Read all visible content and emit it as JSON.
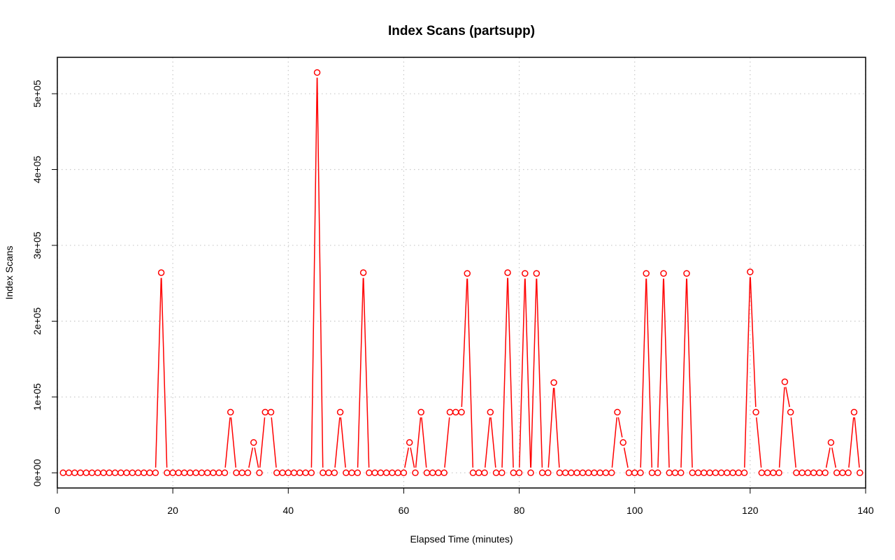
{
  "chart_data": {
    "type": "line",
    "title": "Index Scans (partsupp)",
    "xlabel": "Elapsed Time (minutes)",
    "ylabel": "Index Scans",
    "xlim": [
      0,
      140
    ],
    "ylim": [
      -20000,
      548000
    ],
    "x_ticks": [
      0,
      20,
      40,
      60,
      80,
      100,
      120,
      140
    ],
    "x_tick_labels": [
      "0",
      "20",
      "40",
      "60",
      "80",
      "100",
      "120",
      "140"
    ],
    "y_ticks": [
      0,
      100000,
      200000,
      300000,
      400000,
      500000
    ],
    "y_tick_labels": [
      "0e+00",
      "1e+05",
      "2e+05",
      "3e+05",
      "4e+05",
      "5e+05"
    ],
    "grid": true,
    "series_color": "#ff0000",
    "series": [
      {
        "x": [
          1,
          2,
          3,
          4,
          5,
          6,
          7,
          8,
          9,
          10,
          11,
          12,
          13,
          14,
          15,
          16,
          17,
          18,
          19,
          20,
          21,
          22,
          23,
          24,
          25,
          26,
          27,
          28,
          29,
          30,
          31,
          32,
          33,
          34,
          35,
          36,
          37,
          38,
          39,
          40,
          41,
          42,
          43,
          44,
          45,
          46,
          47,
          48,
          49,
          50,
          51,
          52,
          53,
          54,
          55,
          56,
          57,
          58,
          59,
          60,
          61,
          62,
          63,
          64,
          65,
          66,
          67,
          68,
          69,
          70,
          71,
          72,
          73,
          74,
          75,
          76,
          77,
          78,
          79,
          80,
          81,
          82,
          83,
          84,
          85,
          86,
          87,
          88,
          89,
          90,
          91,
          92,
          93,
          94,
          95,
          96,
          97,
          98,
          99,
          100,
          101,
          102,
          103,
          104,
          105,
          106,
          107,
          108,
          109,
          110,
          111,
          112,
          113,
          114,
          115,
          116,
          117,
          118,
          119,
          120,
          121,
          122,
          123,
          124,
          125,
          126,
          127,
          128,
          129,
          130,
          131,
          132,
          133,
          134,
          135,
          136,
          137,
          138,
          139
        ],
        "y": [
          0,
          0,
          0,
          0,
          0,
          0,
          0,
          0,
          0,
          0,
          0,
          0,
          0,
          0,
          0,
          0,
          0,
          264000,
          0,
          0,
          0,
          0,
          0,
          0,
          0,
          0,
          0,
          0,
          0,
          80000,
          0,
          0,
          0,
          40000,
          0,
          80000,
          80000,
          0,
          0,
          0,
          0,
          0,
          0,
          0,
          528000,
          0,
          0,
          0,
          80000,
          0,
          0,
          0,
          264000,
          0,
          0,
          0,
          0,
          0,
          0,
          0,
          40000,
          0,
          80000,
          0,
          0,
          0,
          0,
          80000,
          80000,
          80000,
          263000,
          0,
          0,
          0,
          80000,
          0,
          0,
          264000,
          0,
          0,
          263000,
          0,
          263000,
          0,
          0,
          119000,
          0,
          0,
          0,
          0,
          0,
          0,
          0,
          0,
          0,
          0,
          80000,
          40000,
          0,
          0,
          0,
          263000,
          0,
          0,
          263000,
          0,
          0,
          0,
          263000,
          0,
          0,
          0,
          0,
          0,
          0,
          0,
          0,
          0,
          0,
          265000,
          80000,
          0,
          0,
          0,
          0,
          120000,
          80000,
          0,
          0,
          0,
          0,
          0,
          0,
          40000,
          0,
          0,
          0,
          80000,
          0
        ]
      }
    ]
  }
}
